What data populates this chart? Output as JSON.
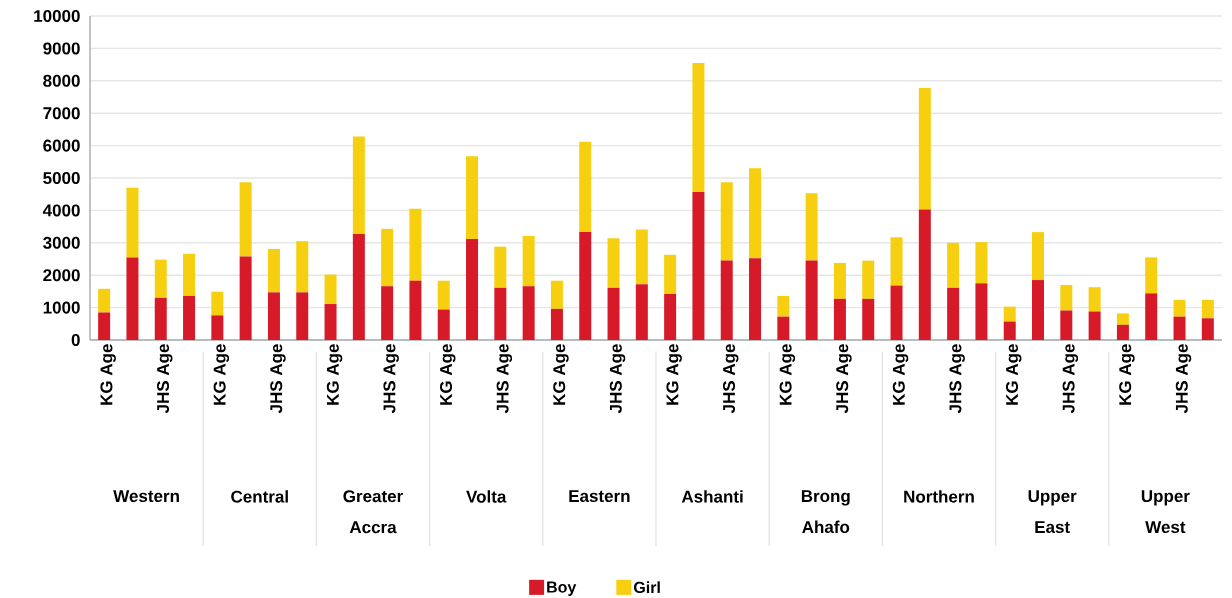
{
  "chart_data": {
    "type": "bar",
    "stacked": true,
    "categories": [
      "KG Age",
      null,
      "JHS Age",
      null,
      "KG Age",
      null,
      "JHS Age",
      null,
      "KG Age",
      null,
      "JHS Age",
      null,
      "KG Age",
      null,
      "JHS Age",
      null,
      "KG Age",
      null,
      "JHS Age",
      null,
      "KG Age",
      null,
      "JHS Age",
      null,
      "KG Age",
      null,
      "JHS Age",
      null,
      "KG Age",
      null,
      "JHS Age",
      null,
      "KG Age",
      null,
      "JHS Age",
      null,
      "KG Age",
      null,
      "JHS Age",
      null
    ],
    "series": [
      {
        "name": "Boy",
        "color": "#d71a28",
        "values": [
          850,
          2550,
          1300,
          1360,
          760,
          2580,
          1470,
          1470,
          1110,
          3270,
          1660,
          1830,
          940,
          3120,
          1610,
          1660,
          960,
          3330,
          1610,
          1720,
          1420,
          4570,
          2450,
          2520,
          720,
          2450,
          1270,
          1270,
          1680,
          4030,
          1610,
          1750,
          570,
          1850,
          910,
          880,
          470,
          1440,
          720,
          670
        ]
      },
      {
        "name": "Girl",
        "color": "#f5cf10",
        "values": [
          730,
          2150,
          1180,
          1300,
          730,
          2290,
          1340,
          1580,
          910,
          3010,
          1770,
          2220,
          890,
          2550,
          1270,
          1550,
          870,
          2790,
          1530,
          1690,
          1210,
          3980,
          2420,
          2780,
          640,
          2080,
          1110,
          1180,
          1490,
          3750,
          1390,
          1270,
          460,
          1480,
          790,
          750,
          350,
          1110,
          520,
          570
        ]
      }
    ],
    "ylim": [
      0,
      10000
    ],
    "yticks": [
      0,
      1000,
      2000,
      3000,
      4000,
      5000,
      6000,
      7000,
      8000,
      9000,
      10000
    ],
    "grid": "y",
    "legend": "bottom",
    "annotations": [
      "Western",
      "Central",
      "Greater Accra",
      "Volta",
      "Eastern",
      "Ashanti",
      "Brong Ahafo",
      "Northern",
      "Upper East",
      "Upper West"
    ]
  }
}
